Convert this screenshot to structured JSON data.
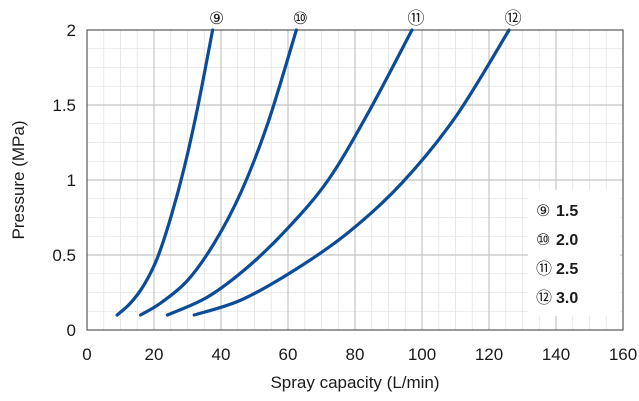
{
  "chart_data": {
    "type": "line",
    "title": "",
    "xlabel": "Spray capacity (L/min)",
    "ylabel": "Pressure (MPa)",
    "xlim": [
      0,
      160
    ],
    "ylim": [
      0,
      2
    ],
    "x_ticks": [
      "0",
      "20",
      "40",
      "60",
      "80",
      "100",
      "120",
      "140",
      "160"
    ],
    "y_ticks": [
      "0",
      "0.5",
      "1",
      "1.5",
      "2"
    ],
    "grid": true,
    "minor_grid": true,
    "legend_position": "bottom-right",
    "line_color": "#0b4b98",
    "series": [
      {
        "name": "⑨",
        "legend_value": "1.5",
        "x": [
          9,
          13,
          17,
          21,
          25,
          29,
          33,
          37.5
        ],
        "y": [
          0.1,
          0.18,
          0.3,
          0.48,
          0.75,
          1.08,
          1.48,
          2.0
        ]
      },
      {
        "name": "⑩",
        "legend_value": "2.0",
        "x": [
          16,
          22,
          30,
          38,
          46,
          54,
          62.5
        ],
        "y": [
          0.1,
          0.18,
          0.33,
          0.58,
          0.92,
          1.38,
          2.0
        ]
      },
      {
        "name": "⑪",
        "legend_value": "2.5",
        "x": [
          24,
          36,
          48,
          60,
          72,
          84,
          97
        ],
        "y": [
          0.1,
          0.22,
          0.42,
          0.68,
          1.0,
          1.45,
          2.0
        ]
      },
      {
        "name": "⑫",
        "legend_value": "3.0",
        "x": [
          32,
          46,
          62,
          78,
          94,
          110,
          126
        ],
        "y": [
          0.1,
          0.2,
          0.4,
          0.65,
          0.98,
          1.42,
          2.0
        ]
      }
    ]
  }
}
